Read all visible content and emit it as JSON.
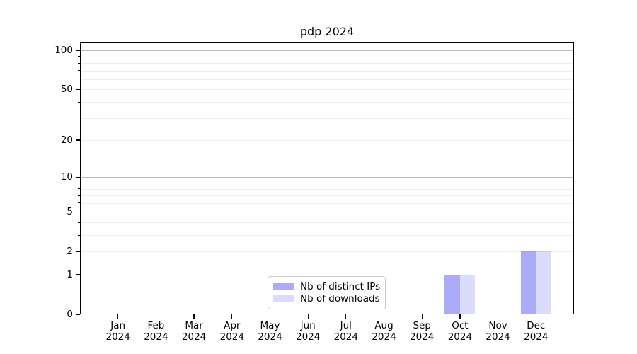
{
  "chart_data": {
    "type": "bar",
    "title": "pdp 2024",
    "categories": [
      "Jan 2024",
      "Feb 2024",
      "Mar 2024",
      "Apr 2024",
      "May 2024",
      "Jun 2024",
      "Jul 2024",
      "Aug 2024",
      "Sep 2024",
      "Oct 2024",
      "Nov 2024",
      "Dec 2024"
    ],
    "series": [
      {
        "name": "Nb of distinct IPs",
        "color": "#0000eb",
        "alpha": 0.33,
        "values": [
          0,
          0,
          0,
          0,
          0,
          0,
          0,
          0,
          0,
          1,
          0,
          2
        ]
      },
      {
        "name": "Nb of downloads",
        "color": "#0000eb",
        "alpha": 0.14,
        "values": [
          0,
          0,
          0,
          0,
          0,
          0,
          0,
          0,
          0,
          1,
          0,
          2
        ]
      }
    ],
    "xlabel": "",
    "ylabel": "",
    "y_axis": {
      "scale": "log1p",
      "ylim": [
        0,
        115
      ],
      "tick_labels": [
        0,
        1,
        2,
        5,
        10,
        20,
        50,
        100
      ],
      "major_gridlines": [
        1,
        10,
        100
      ],
      "minor_gridlines": [
        2,
        3,
        4,
        5,
        6,
        7,
        8,
        9,
        20,
        30,
        40,
        50,
        60,
        70,
        80,
        90
      ],
      "grid": true
    },
    "legend": {
      "position": "bottom-center",
      "entries": [
        "Nb of distinct IPs",
        "Nb of downloads"
      ]
    }
  },
  "colors": {
    "background": "#ffffff",
    "axis": "#000000",
    "major_grid": "#bababa",
    "minor_grid": "#ececec",
    "legend_border": "#cccccc",
    "bar_base": "#0000eb"
  }
}
